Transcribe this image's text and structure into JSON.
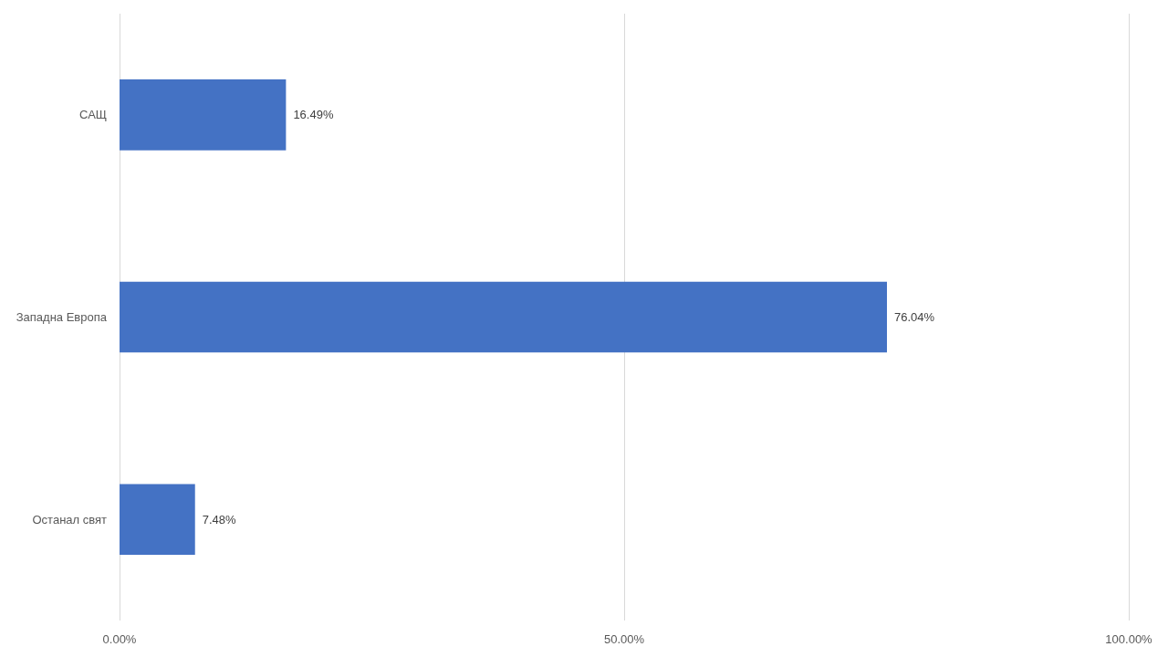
{
  "chart_data": {
    "type": "bar",
    "orientation": "horizontal",
    "categories": [
      "САЩ",
      "Западна Европа",
      "Останал свят"
    ],
    "values": [
      16.49,
      76.04,
      7.48
    ],
    "value_labels": [
      "16.49%",
      "76.04%",
      "7.48%"
    ],
    "color": "#4472c4",
    "xlim": [
      0,
      100
    ],
    "xticks": [
      {
        "value": 0,
        "label": "0.00%"
      },
      {
        "value": 50,
        "label": "50.00%"
      },
      {
        "value": 100,
        "label": "100.00%"
      }
    ],
    "grid": "x"
  }
}
